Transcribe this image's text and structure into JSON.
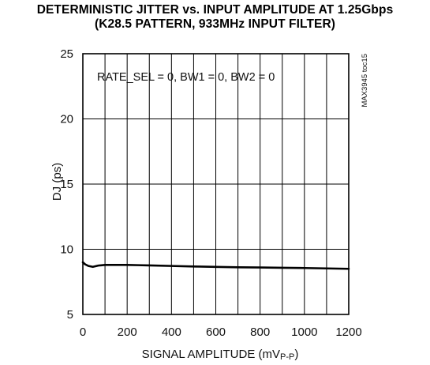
{
  "chart_data": {
    "type": "line",
    "title": "DETERMINISTIC JITTER vs. INPUT AMPLITUDE AT 1.25Gbps",
    "subtitle": "(K28.5 PATTERN, 933MHz INPUT FILTER)",
    "xlabel_main": "SIGNAL AMPLITUDE (mV",
    "xlabel_sub": "P-P",
    "xlabel_close": ")",
    "ylabel": "DJ (ps)",
    "annotation": "RATE_SEL = 0, BW1 = 0, BW2 = 0",
    "part_code": "MAX3945 toc15",
    "xlim": [
      0,
      1200
    ],
    "ylim": [
      5,
      25
    ],
    "x_ticks": [
      "0",
      "200",
      "400",
      "600",
      "800",
      "1000",
      "1200"
    ],
    "y_ticks": [
      "5",
      "10",
      "15",
      "20",
      "25"
    ],
    "grid": true,
    "series": [
      {
        "x": [
          0,
          10,
          25,
          45,
          70,
          100,
          150,
          200,
          250,
          300,
          400,
          500,
          600,
          700,
          800,
          900,
          1000,
          1100,
          1200
        ],
        "y": [
          9.0,
          8.85,
          8.72,
          8.65,
          8.75,
          8.8,
          8.8,
          8.8,
          8.78,
          8.76,
          8.72,
          8.68,
          8.65,
          8.62,
          8.6,
          8.58,
          8.56,
          8.53,
          8.5
        ]
      }
    ]
  }
}
